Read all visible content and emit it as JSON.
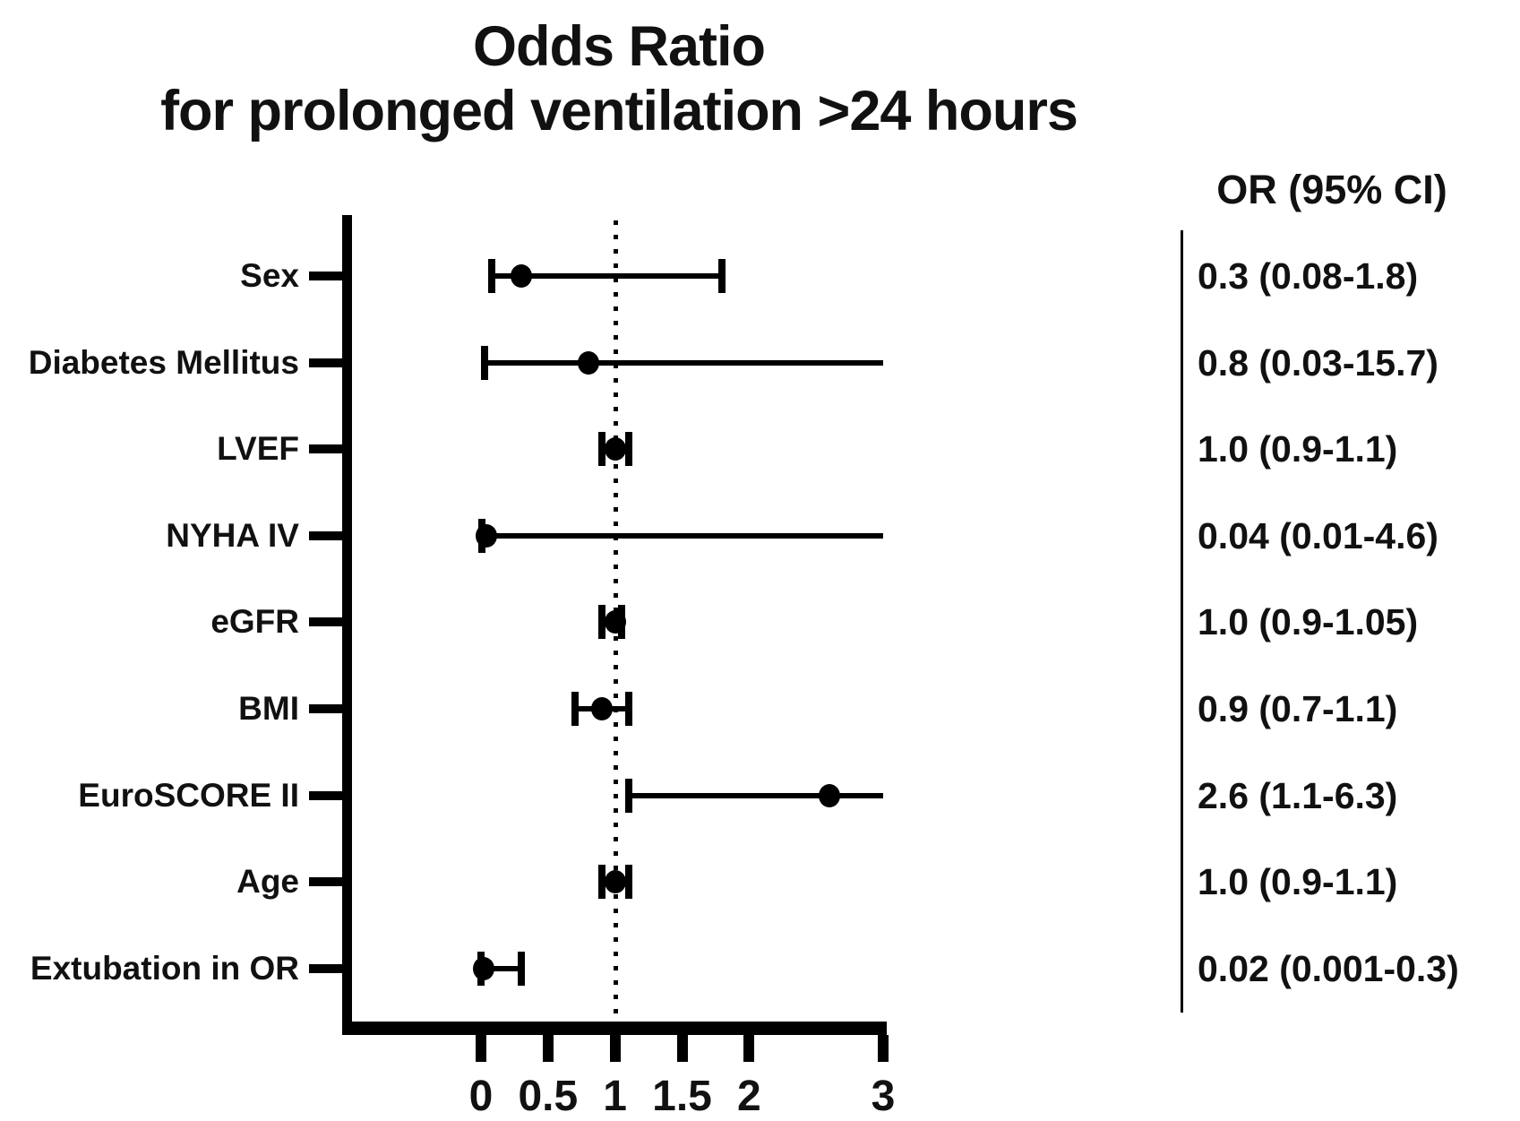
{
  "title": {
    "line1": "Odds Ratio",
    "line2": "for prolonged ventilation >24 hours"
  },
  "or_column": {
    "header": "OR (95% CI)"
  },
  "colors": {
    "ink": "#000000",
    "background": "#ffffff"
  },
  "chart_data": {
    "type": "scatter",
    "subtype": "forest-plot",
    "title": "Odds Ratio for prolonged ventilation >24 hours",
    "xlabel": "",
    "ylabel": "",
    "xlim": [
      0,
      3
    ],
    "grid": false,
    "reference_line_x": 1,
    "ci_clip_max": 3,
    "x_ticks": [
      {
        "value": 0,
        "label": "0"
      },
      {
        "value": 0.5,
        "label": "0.5"
      },
      {
        "value": 1,
        "label": "1"
      },
      {
        "value": 1.5,
        "label": "1.5"
      },
      {
        "value": 2,
        "label": "2"
      },
      {
        "value": 3,
        "label": "3"
      }
    ],
    "rows": [
      {
        "label": "Sex",
        "or": 0.3,
        "ci_low": 0.08,
        "ci_high": 1.8,
        "ci_text": "0.3 (0.08-1.8)"
      },
      {
        "label": "Diabetes Mellitus",
        "or": 0.8,
        "ci_low": 0.03,
        "ci_high": 15.7,
        "ci_text": "0.8 (0.03-15.7)"
      },
      {
        "label": "LVEF",
        "or": 1.0,
        "ci_low": 0.9,
        "ci_high": 1.1,
        "ci_text": "1.0 (0.9-1.1)"
      },
      {
        "label": "NYHA IV",
        "or": 0.04,
        "ci_low": 0.01,
        "ci_high": 4.6,
        "ci_text": "0.04 (0.01-4.6)"
      },
      {
        "label": "eGFR",
        "or": 1.0,
        "ci_low": 0.9,
        "ci_high": 1.05,
        "ci_text": "1.0 (0.9-1.05)"
      },
      {
        "label": "BMI",
        "or": 0.9,
        "ci_low": 0.7,
        "ci_high": 1.1,
        "ci_text": "0.9 (0.7-1.1)"
      },
      {
        "label": "EuroSCORE II",
        "or": 2.6,
        "ci_low": 1.1,
        "ci_high": 6.3,
        "ci_text": "2.6 (1.1-6.3)"
      },
      {
        "label": "Age",
        "or": 1.0,
        "ci_low": 0.9,
        "ci_high": 1.1,
        "ci_text": "1.0 (0.9-1.1)"
      },
      {
        "label": "Extubation in OR",
        "or": 0.02,
        "ci_low": 0.001,
        "ci_high": 0.3,
        "ci_text": "0.02 (0.001-0.3)"
      }
    ]
  }
}
